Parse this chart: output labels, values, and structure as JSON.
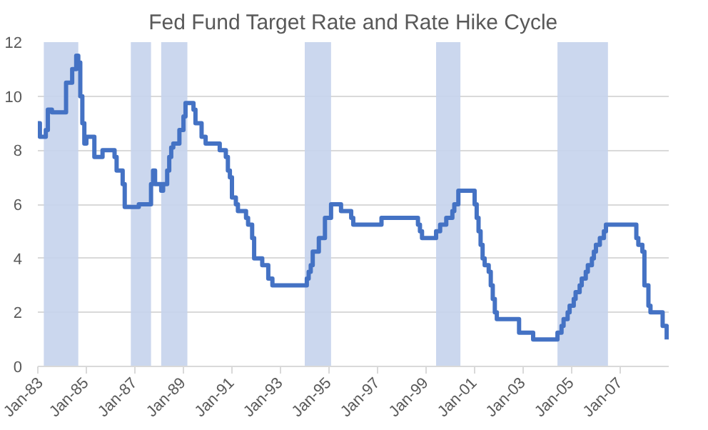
{
  "chart_data": {
    "type": "step",
    "title": "Fed Fund Target Rate and Rate Hike Cycle",
    "x": [
      "1983-01",
      "1983-02",
      "1983-05",
      "1983-06",
      "1983-08",
      "1984-03",
      "1984-06",
      "1984-08",
      "1984-09",
      "1984-10",
      "1984-11",
      "1984-12",
      "1985-01",
      "1985-05",
      "1985-09",
      "1986-03",
      "1986-04",
      "1986-07",
      "1986-08",
      "1987-03",
      "1987-09",
      "1987-10",
      "1987-11",
      "1988-02",
      "1988-03",
      "1988-05",
      "1988-06",
      "1988-07",
      "1988-08",
      "1988-11",
      "1989-01",
      "1989-02",
      "1989-06",
      "1989-07",
      "1989-10",
      "1989-12",
      "1990-07",
      "1990-10",
      "1990-11",
      "1990-12",
      "1991-01",
      "1991-03",
      "1991-04",
      "1991-08",
      "1991-09",
      "1991-11",
      "1991-12",
      "1992-04",
      "1992-07",
      "1992-09",
      "1994-02",
      "1994-03",
      "1994-04",
      "1994-05",
      "1994-08",
      "1994-11",
      "1995-02",
      "1995-07",
      "1995-12",
      "1996-01",
      "1997-03",
      "1998-09",
      "1998-10",
      "1998-11",
      "1999-06",
      "1999-08",
      "1999-11",
      "2000-02",
      "2000-03",
      "2000-05",
      "2001-01",
      "2001-02",
      "2001-03",
      "2001-04",
      "2001-05",
      "2001-06",
      "2001-08",
      "2001-09",
      "2001-10",
      "2001-11",
      "2001-12",
      "2002-11",
      "2003-06",
      "2004-06",
      "2004-08",
      "2004-09",
      "2004-11",
      "2004-12",
      "2005-02",
      "2005-03",
      "2005-05",
      "2005-06",
      "2005-08",
      "2005-09",
      "2005-11",
      "2005-12",
      "2006-01",
      "2006-03",
      "2006-05",
      "2006-06",
      "2007-09",
      "2007-10",
      "2007-12",
      "2008-01",
      "2008-03",
      "2008-04",
      "2008-10",
      "2008-12"
    ],
    "series": [
      {
        "color": "#4472c4",
        "values": [
          9.0,
          8.5,
          8.75,
          9.5,
          9.4,
          10.5,
          11.0,
          11.5,
          11.25,
          10.0,
          9.0,
          8.25,
          8.5,
          7.75,
          8.0,
          7.75,
          7.25,
          6.75,
          5.9,
          6.0,
          6.75,
          7.25,
          6.75,
          6.5,
          6.75,
          7.25,
          7.75,
          8.1,
          8.25,
          8.75,
          9.25,
          9.75,
          9.5,
          9.0,
          8.5,
          8.25,
          8.0,
          7.75,
          7.25,
          7.0,
          6.25,
          6.0,
          5.75,
          5.5,
          5.25,
          4.75,
          4.0,
          3.75,
          3.25,
          3.0,
          3.25,
          3.5,
          3.75,
          4.25,
          4.75,
          5.5,
          6.0,
          5.75,
          5.5,
          5.25,
          5.5,
          5.25,
          5.0,
          4.75,
          5.0,
          5.25,
          5.5,
          5.75,
          6.0,
          6.5,
          6.0,
          5.5,
          5.0,
          4.5,
          4.0,
          3.75,
          3.5,
          3.0,
          2.5,
          2.0,
          1.75,
          1.25,
          1.0,
          1.25,
          1.5,
          1.75,
          2.0,
          2.25,
          2.5,
          2.75,
          3.0,
          3.25,
          3.5,
          3.75,
          4.0,
          4.25,
          4.5,
          4.75,
          5.0,
          5.25,
          4.75,
          4.5,
          4.25,
          3.0,
          2.25,
          2.0,
          1.5,
          1.0
        ]
      }
    ],
    "xlim": [
      "1983-01",
      "2009-01"
    ],
    "xticks": [
      {
        "value": "1983-01",
        "label": "Jan-83"
      },
      {
        "value": "1985-01",
        "label": "Jan-85"
      },
      {
        "value": "1987-01",
        "label": "Jan-87"
      },
      {
        "value": "1989-01",
        "label": "Jan-89"
      },
      {
        "value": "1991-01",
        "label": "Jan-91"
      },
      {
        "value": "1993-01",
        "label": "Jan-93"
      },
      {
        "value": "1995-01",
        "label": "Jan-95"
      },
      {
        "value": "1997-01",
        "label": "Jan-97"
      },
      {
        "value": "1999-01",
        "label": "Jan-99"
      },
      {
        "value": "2001-01",
        "label": "Jan-01"
      },
      {
        "value": "2003-01",
        "label": "Jan-03"
      },
      {
        "value": "2005-01",
        "label": "Jan-05"
      },
      {
        "value": "2007-01",
        "label": "Jan-07"
      }
    ],
    "ylim": [
      0,
      12
    ],
    "yticks": [
      0,
      2,
      4,
      6,
      8,
      10,
      12
    ],
    "grid": "y",
    "line_style": "solid",
    "bands": [
      {
        "axis": "x",
        "from": "1983-04",
        "to": "1984-09",
        "color": "#c5d3ec"
      },
      {
        "axis": "x",
        "from": "1986-11",
        "to": "1987-09",
        "color": "#c5d3ec"
      },
      {
        "axis": "x",
        "from": "1988-02",
        "to": "1989-03",
        "color": "#c5d3ec"
      },
      {
        "axis": "x",
        "from": "1994-01",
        "to": "1995-02",
        "color": "#c5d3ec"
      },
      {
        "axis": "x",
        "from": "1999-06",
        "to": "2000-06",
        "color": "#c5d3ec"
      },
      {
        "axis": "x",
        "from": "2004-06",
        "to": "2006-07",
        "color": "#c5d3ec"
      }
    ]
  }
}
